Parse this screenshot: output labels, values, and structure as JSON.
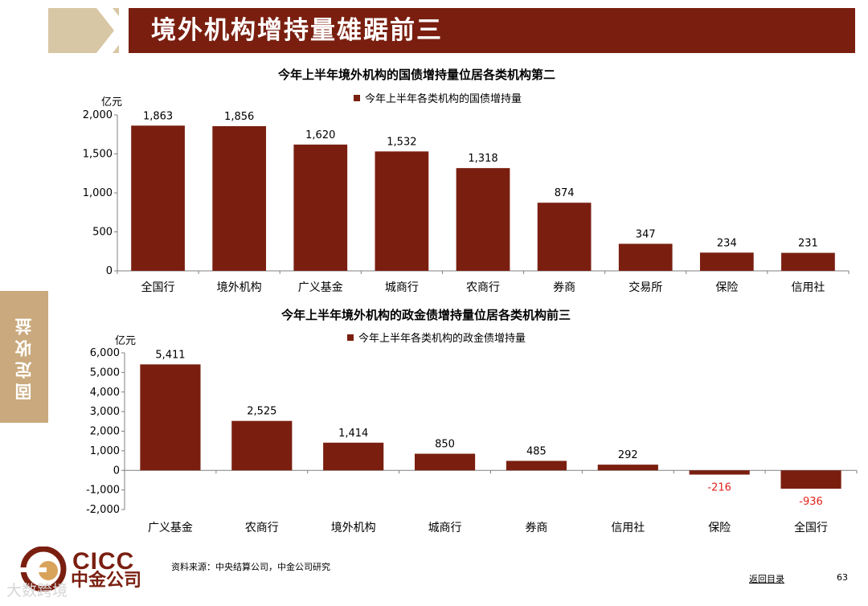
{
  "header": {
    "title": "境外机构增持量雄踞前三"
  },
  "side_tab": {
    "label": "固定收益"
  },
  "chart_data": [
    {
      "type": "bar",
      "title": "今年上半年境外机构的国债增持量位居各类机构第二",
      "ylabel": "亿元",
      "legend": "今年上半年各类机构的国债增持量",
      "categories": [
        "全国行",
        "境外机构",
        "广义基金",
        "城商行",
        "农商行",
        "券商",
        "交易所",
        "保险",
        "信用社"
      ],
      "values": [
        1863,
        1856,
        1620,
        1532,
        1318,
        874,
        347,
        234,
        231
      ],
      "value_labels": [
        "1,863",
        "1,856",
        "1,620",
        "1,532",
        "1,318",
        "874",
        "347",
        "234",
        "231"
      ],
      "ylim": [
        0,
        2000
      ],
      "yticks": [
        0,
        500,
        1000,
        1500,
        2000
      ],
      "ytick_labels": [
        "0",
        "500",
        "1,000",
        "1,500",
        "2,000"
      ],
      "grid": false,
      "color": "#7a1f10"
    },
    {
      "type": "bar",
      "title": "今年上半年境外机构的政金债增持量位居各类机构前三",
      "ylabel": "亿元",
      "legend": "今年上半年各类机构的政金债增持量",
      "categories": [
        "广义基金",
        "农商行",
        "境外机构",
        "城商行",
        "券商",
        "信用社",
        "保险",
        "全国行"
      ],
      "values": [
        5411,
        2525,
        1414,
        850,
        485,
        292,
        -216,
        -936
      ],
      "value_labels": [
        "5,411",
        "2,525",
        "1,414",
        "850",
        "485",
        "292",
        "-216",
        "-936"
      ],
      "ylim": [
        -2000,
        6000
      ],
      "yticks": [
        -2000,
        -1000,
        0,
        1000,
        2000,
        3000,
        4000,
        5000,
        6000
      ],
      "ytick_labels": [
        "-2,000",
        "-1,000",
        "0",
        "1,000",
        "2,000",
        "3,000",
        "4,000",
        "5,000",
        "6,000"
      ],
      "grid": false,
      "color": "#7a1f10",
      "negative_label_color": "#e0231c"
    }
  ],
  "footer": {
    "source": "资料来源：中央结算公司，中金公司研究",
    "back_link": "返回目录",
    "page_number": "63",
    "logo_en": "CICC",
    "logo_cn": "中金公司",
    "watermark": "大数跨境"
  }
}
